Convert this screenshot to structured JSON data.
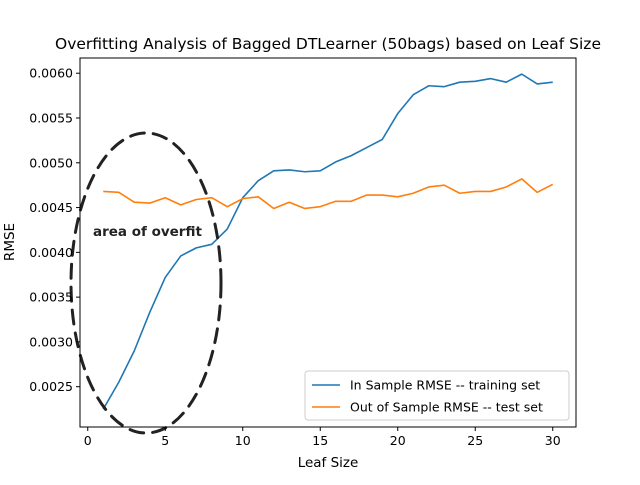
{
  "chart_data": {
    "type": "line",
    "title": "Overfitting Analysis of Bagged DTLearner (50bags) based on Leaf Size",
    "xlabel": "Leaf Size",
    "ylabel": "RMSE",
    "xlim": [
      -0.5,
      31.5
    ],
    "ylim": [
      0.00205,
      0.00617
    ],
    "xticks": [
      0,
      5,
      10,
      15,
      20,
      25,
      30
    ],
    "yticks": [
      0.0025,
      0.003,
      0.0035,
      0.004,
      0.0045,
      0.005,
      0.0055,
      0.006
    ],
    "ytick_labels": [
      "0.0025",
      "0.0030",
      "0.0035",
      "0.0040",
      "0.0045",
      "0.0050",
      "0.0055",
      "0.0060"
    ],
    "grid": false,
    "legend_position": "lower-right",
    "x": [
      1,
      2,
      3,
      4,
      5,
      6,
      7,
      8,
      9,
      10,
      11,
      12,
      13,
      14,
      15,
      16,
      17,
      18,
      19,
      20,
      21,
      22,
      23,
      24,
      25,
      26,
      27,
      28,
      29,
      30
    ],
    "series": [
      {
        "name": "In Sample RMSE -- training set",
        "color": "#1f77b4",
        "values": [
          0.00225,
          0.00255,
          0.0029,
          0.00333,
          0.00372,
          0.00396,
          0.00405,
          0.00409,
          0.00426,
          0.00461,
          0.0048,
          0.00491,
          0.00492,
          0.0049,
          0.00491,
          0.00501,
          0.00508,
          0.00517,
          0.00526,
          0.00555,
          0.00576,
          0.00586,
          0.00585,
          0.0059,
          0.00591,
          0.00594,
          0.0059,
          0.00599,
          0.00588,
          0.0059
        ]
      },
      {
        "name": "Out of Sample RMSE -- test set",
        "color": "#ff7f0e",
        "values": [
          0.00468,
          0.00467,
          0.00456,
          0.00455,
          0.00461,
          0.00453,
          0.00459,
          0.00461,
          0.00451,
          0.0046,
          0.00462,
          0.00449,
          0.00456,
          0.00449,
          0.00451,
          0.00457,
          0.00457,
          0.00464,
          0.00464,
          0.00462,
          0.00466,
          0.00473,
          0.00475,
          0.00466,
          0.00468,
          0.00468,
          0.00473,
          0.00482,
          0.00467,
          0.00476
        ]
      }
    ],
    "annotations": [
      {
        "text": "area of overfit",
        "shape": "dashed-ellipse",
        "color": "#222222"
      }
    ]
  }
}
